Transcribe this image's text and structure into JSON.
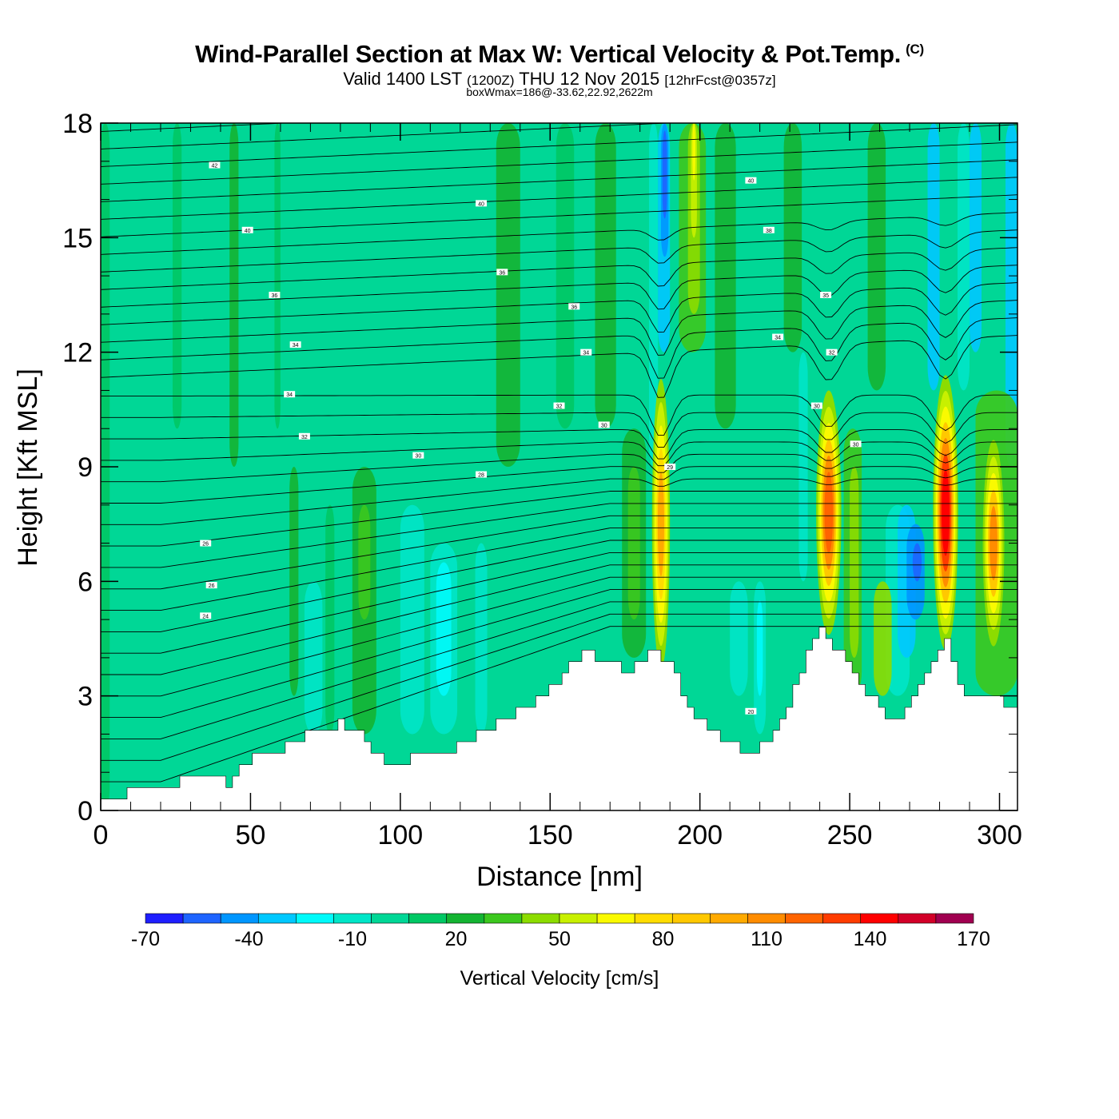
{
  "header": {
    "title": "Wind-Parallel Section at Max W: Vertical Velocity & Pot.Temp.",
    "copyright": "(C)",
    "subtitle_a": "Valid 1400 LST",
    "subtitle_b": "(1200Z)",
    "subtitle_c": "THU 12 Nov 2015",
    "subtitle_d": "[12hrFcst@0357z]",
    "subsubtitle": "boxWmax=186@-33.62,22.92,2622m"
  },
  "chart_data": {
    "type": "heatmap",
    "title": "Wind-Parallel Section at Max W: Vertical Velocity & Pot.Temp.",
    "xlabel": "Distance [nm]",
    "ylabel": "Height [Kft MSL]",
    "xlim": [
      0,
      306
    ],
    "ylim": [
      0,
      18
    ],
    "x_ticks": [
      "0",
      "50",
      "100",
      "150",
      "200",
      "250",
      "300"
    ],
    "y_ticks": [
      "0",
      "3",
      "6",
      "9",
      "12",
      "15",
      "18"
    ],
    "colorbar": {
      "label": "Vertical Velocity [cm/s]",
      "tick_labels": [
        "-70",
        "-40",
        "-10",
        "20",
        "50",
        "80",
        "110",
        "140",
        "170"
      ],
      "colors": [
        "#1e1eff",
        "#1e64ff",
        "#0096ff",
        "#00c8ff",
        "#00fafa",
        "#00e6c8",
        "#00d796",
        "#00c864",
        "#14b432",
        "#3cc81e",
        "#8cdc00",
        "#c8f000",
        "#fafa00",
        "#ffdc00",
        "#ffc800",
        "#ffaa00",
        "#ff8c00",
        "#ff6400",
        "#ff3c00",
        "#ff0000",
        "#d20028",
        "#a00050"
      ]
    },
    "background_level": "-10 to 0",
    "updraft_maxima": [
      {
        "x": 187,
        "value": 80
      },
      {
        "x": 243,
        "value": 110
      },
      {
        "x": 282,
        "value": 140
      },
      {
        "x": 298,
        "value": 100
      },
      {
        "x": 199,
        "value": 60
      }
    ],
    "downdraft_minima": [
      {
        "x": 188,
        "value": -40
      },
      {
        "x": 274,
        "value": -40
      },
      {
        "x": 114,
        "value": -30
      }
    ],
    "terrain_profile": {
      "x": [
        0,
        23,
        35,
        42,
        47,
        57,
        66,
        80,
        88,
        93,
        100,
        117,
        125,
        133,
        145,
        155,
        160,
        175,
        185,
        190,
        197,
        208,
        217,
        225,
        232,
        240,
        245,
        252,
        262,
        268,
        275,
        282,
        287,
        300,
        306
      ],
      "height": [
        0.3,
        0.7,
        1.0,
        0.7,
        1.3,
        1.5,
        1.9,
        2.3,
        1.9,
        1.3,
        1.3,
        1.6,
        2.0,
        2.3,
        2.9,
        3.7,
        4.2,
        3.7,
        4.2,
        3.7,
        2.6,
        1.7,
        1.6,
        2.0,
        3.5,
        4.8,
        4.2,
        3.5,
        2.3,
        2.6,
        3.6,
        4.5,
        2.9,
        2.9,
        2.6
      ]
    },
    "contour_labels": [
      "42",
      "40",
      "40",
      "40",
      "38",
      "36",
      "36",
      "36",
      "35",
      "34",
      "34",
      "34",
      "34",
      "32",
      "32",
      "32",
      "30",
      "30",
      "30",
      "30",
      "29",
      "28",
      "26",
      "26",
      "24",
      "20"
    ],
    "grid": false
  }
}
